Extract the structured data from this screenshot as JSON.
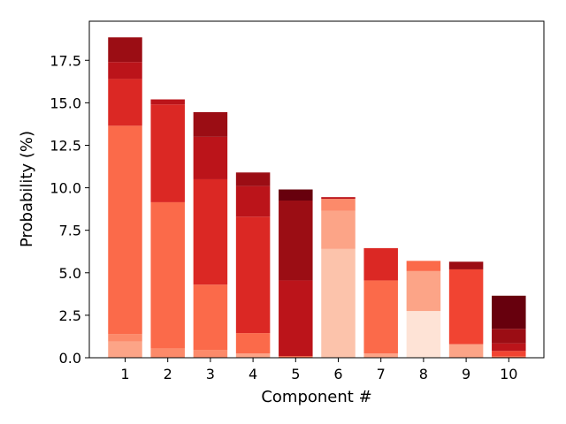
{
  "chart_data": {
    "type": "bar",
    "stacked": true,
    "xlabel": "Component #",
    "ylabel": "Probability (%)",
    "ylim": [
      0,
      19.8
    ],
    "yticks": [
      0.0,
      2.5,
      5.0,
      7.5,
      10.0,
      12.5,
      15.0,
      17.5
    ],
    "ytick_labels": [
      "0.0",
      "2.5",
      "5.0",
      "7.5",
      "10.0",
      "12.5",
      "15.0",
      "17.5"
    ],
    "categories": [
      "1",
      "2",
      "3",
      "4",
      "5",
      "6",
      "7",
      "8",
      "9",
      "10"
    ],
    "grid": false,
    "legend": "none",
    "bars": [
      {
        "category": "1",
        "total": 18.85,
        "segments": [
          {
            "value": 0.95,
            "color": "#fca487"
          },
          {
            "value": 0.45,
            "color": "#fc8a6a"
          },
          {
            "value": 12.25,
            "color": "#fb6a4a"
          },
          {
            "value": 2.75,
            "color": "#db2824"
          },
          {
            "value": 1.0,
            "color": "#bb141a"
          },
          {
            "value": 1.45,
            "color": "#9b0d14"
          }
        ]
      },
      {
        "category": "2",
        "total": 15.2,
        "segments": [
          {
            "value": 0.55,
            "color": "#fc8a6a"
          },
          {
            "value": 8.6,
            "color": "#fb6a4a"
          },
          {
            "value": 5.75,
            "color": "#db2824"
          },
          {
            "value": 0.3,
            "color": "#bb141a"
          }
        ]
      },
      {
        "category": "3",
        "total": 14.45,
        "segments": [
          {
            "value": 0.45,
            "color": "#fc8a6a"
          },
          {
            "value": 3.85,
            "color": "#fb6a4a"
          },
          {
            "value": 6.2,
            "color": "#db2824"
          },
          {
            "value": 2.5,
            "color": "#bb141a"
          },
          {
            "value": 1.45,
            "color": "#9b0d14"
          }
        ]
      },
      {
        "category": "4",
        "total": 10.9,
        "segments": [
          {
            "value": 0.25,
            "color": "#fca487"
          },
          {
            "value": 1.2,
            "color": "#fb6a4a"
          },
          {
            "value": 6.85,
            "color": "#db2824"
          },
          {
            "value": 1.8,
            "color": "#bb141a"
          },
          {
            "value": 0.8,
            "color": "#9b0d14"
          }
        ]
      },
      {
        "category": "5",
        "total": 9.9,
        "segments": [
          {
            "value": 0.1,
            "color": "#fb6a4a"
          },
          {
            "value": 4.45,
            "color": "#bb141a"
          },
          {
            "value": 4.7,
            "color": "#9b0d14"
          },
          {
            "value": 0.65,
            "color": "#67000d"
          }
        ]
      },
      {
        "category": "6",
        "total": 9.45,
        "segments": [
          {
            "value": 6.4,
            "color": "#fcc3ab"
          },
          {
            "value": 2.25,
            "color": "#fca487"
          },
          {
            "value": 0.7,
            "color": "#fc8a6a"
          },
          {
            "value": 0.1,
            "color": "#bb141a"
          }
        ]
      },
      {
        "category": "7",
        "total": 6.45,
        "segments": [
          {
            "value": 0.25,
            "color": "#fca487"
          },
          {
            "value": 4.3,
            "color": "#fb6a4a"
          },
          {
            "value": 1.9,
            "color": "#db2824"
          }
        ]
      },
      {
        "category": "8",
        "total": 5.7,
        "segments": [
          {
            "value": 2.75,
            "color": "#fee3d6"
          },
          {
            "value": 2.35,
            "color": "#fca487"
          },
          {
            "value": 0.6,
            "color": "#fb6a4a"
          }
        ]
      },
      {
        "category": "9",
        "total": 5.65,
        "segments": [
          {
            "value": 0.8,
            "color": "#fca487"
          },
          {
            "value": 4.4,
            "color": "#f14432"
          },
          {
            "value": 0.45,
            "color": "#9b0d14"
          }
        ]
      },
      {
        "category": "10",
        "total": 3.65,
        "segments": [
          {
            "value": 0.1,
            "color": "#fb6a4a"
          },
          {
            "value": 0.3,
            "color": "#f14432"
          },
          {
            "value": 0.45,
            "color": "#bb141a"
          },
          {
            "value": 0.85,
            "color": "#9b0d14"
          },
          {
            "value": 1.95,
            "color": "#67000d"
          }
        ]
      }
    ]
  }
}
